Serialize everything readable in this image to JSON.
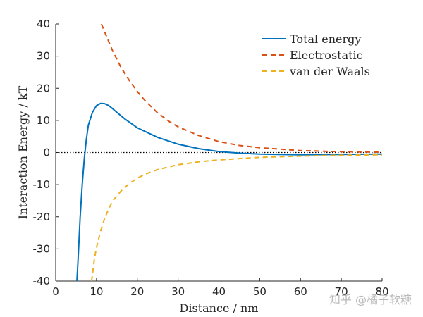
{
  "chart_data": {
    "type": "line",
    "xlabel": "Distance / nm",
    "ylabel": "Interaction Energy / kT",
    "xlim": [
      0,
      80
    ],
    "ylim": [
      -40,
      40
    ],
    "xticks": [
      0,
      10,
      20,
      30,
      40,
      50,
      60,
      70,
      80
    ],
    "yticks": [
      40,
      30,
      20,
      10,
      0,
      -10,
      -20,
      -30,
      -40
    ],
    "grid": false,
    "legend_position": "top-right",
    "zero_reference_line": 0,
    "series": [
      {
        "name": "Total energy",
        "style": "solid",
        "color": "#0072BD",
        "x": [
          5.2,
          5.5,
          6,
          6.5,
          7,
          7.5,
          8,
          9,
          10,
          11,
          12,
          13,
          14,
          15,
          17,
          20,
          25,
          30,
          35,
          40,
          45,
          50,
          60,
          70,
          80
        ],
        "y": [
          -40,
          -33,
          -20,
          -10,
          -2,
          4,
          8.5,
          12.5,
          14.6,
          15.3,
          15.2,
          14.6,
          13.6,
          12.5,
          10.4,
          7.7,
          4.7,
          2.6,
          1.2,
          0.3,
          -0.2,
          -0.5,
          -0.7,
          -0.6,
          -0.5
        ]
      },
      {
        "name": "Electrostatic",
        "style": "dashed",
        "color": "#D95319",
        "x": [
          11.2,
          12,
          14,
          16,
          18,
          20,
          22,
          25,
          28,
          30,
          35,
          40,
          45,
          50,
          60,
          70,
          80
        ],
        "y": [
          40,
          37.5,
          31.5,
          26.5,
          22.5,
          19,
          16,
          12.3,
          9.5,
          8,
          5.3,
          3.4,
          2.2,
          1.5,
          0.6,
          0.25,
          0.1
        ]
      },
      {
        "name": "van der Waals",
        "style": "dashed",
        "color": "#EDB120",
        "x": [
          8.8,
          9.5,
          10,
          11,
          12,
          13,
          14,
          15,
          16,
          18,
          20,
          22,
          25,
          30,
          35,
          40,
          50,
          60,
          70,
          80
        ],
        "y": [
          -40,
          -33,
          -29.5,
          -24.5,
          -20.5,
          -17.5,
          -15,
          -13.5,
          -12,
          -9.7,
          -8,
          -6.7,
          -5.3,
          -3.8,
          -2.9,
          -2.3,
          -1.5,
          -1.1,
          -0.85,
          -0.7
        ]
      }
    ]
  },
  "watermark": "知乎 @橘子软糖"
}
